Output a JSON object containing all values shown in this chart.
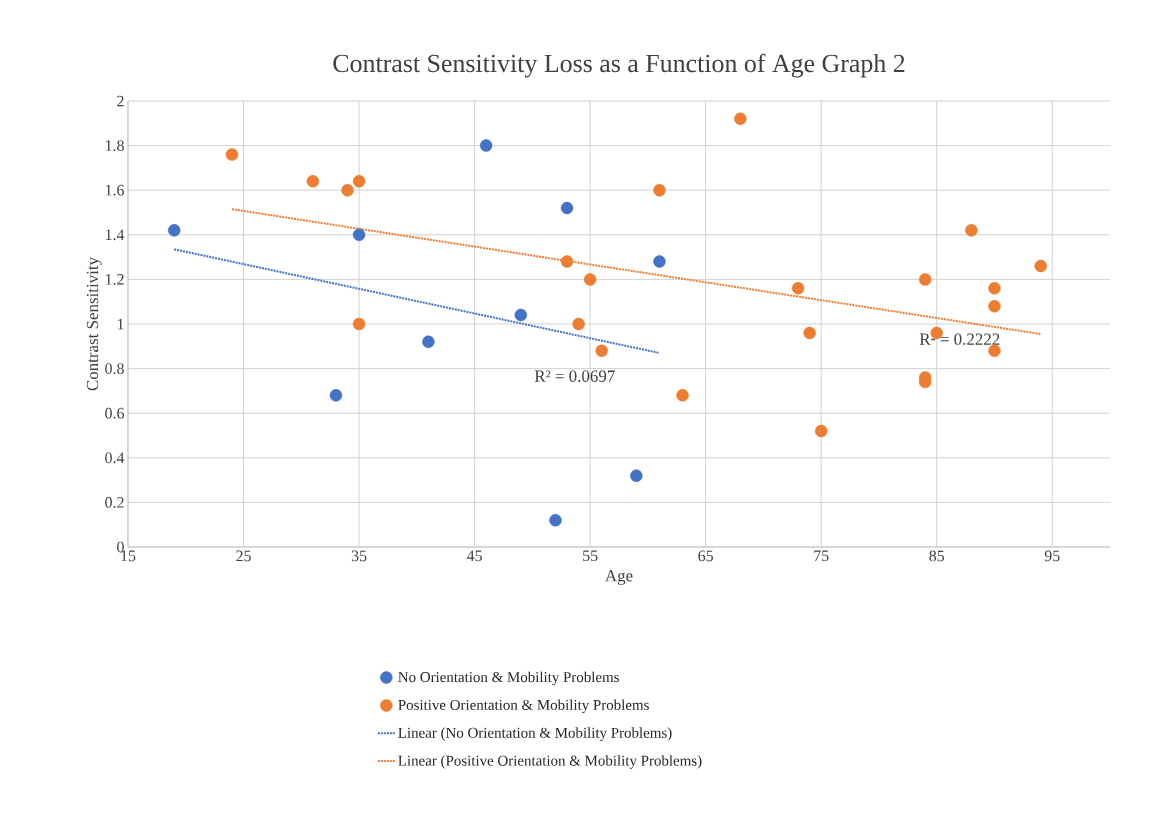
{
  "chart_data": {
    "type": "scatter",
    "title": "Contrast Sensitivity Loss as a Function of Age Graph 2",
    "xlabel": "Age",
    "ylabel": "Contrast Sensitivity",
    "xlim": [
      15,
      100
    ],
    "xticks": [
      15,
      25,
      35,
      45,
      55,
      65,
      75,
      85,
      95
    ],
    "ylim": [
      0,
      2
    ],
    "yticks": [
      0,
      0.2,
      0.4,
      0.6,
      0.8,
      1,
      1.2,
      1.4,
      1.6,
      1.8,
      2
    ],
    "grid": true,
    "legend": "bottom",
    "series": [
      {
        "name": "No Orientation & Mobility Problems",
        "color": "#4472c4",
        "marker": "circle",
        "x": [
          19,
          35,
          33,
          41,
          46,
          49,
          53,
          52,
          59,
          61
        ],
        "values": [
          1.42,
          1.4,
          0.68,
          0.92,
          1.8,
          1.04,
          1.52,
          0.12,
          0.32,
          1.28
        ]
      },
      {
        "name": "Positive Orientation & Mobility Problems",
        "color": "#ed7d31",
        "marker": "circle",
        "x": [
          24,
          31,
          34,
          35,
          35,
          53,
          55,
          54,
          56,
          61,
          63,
          68,
          73,
          74,
          75,
          84,
          84,
          84,
          85,
          88,
          90,
          90,
          90,
          94
        ],
        "values": [
          1.76,
          1.64,
          1.6,
          1.64,
          1.0,
          1.28,
          1.2,
          1.0,
          0.88,
          1.6,
          0.68,
          1.92,
          1.16,
          0.96,
          0.52,
          1.2,
          0.76,
          0.74,
          0.96,
          1.42,
          1.16,
          1.08,
          0.88,
          1.26
        ]
      },
      {
        "name": "Linear (No Orientation & Mobility Problems)",
        "type": "line",
        "line_style": "dotted",
        "marker": "none",
        "color": "#4472c4",
        "x": [
          19,
          61
        ],
        "values": [
          1.335,
          0.87
        ]
      },
      {
        "name": "Linear (Positive Orientation & Mobility Problems)",
        "type": "line",
        "line_style": "dotted",
        "marker": "none",
        "color": "#ed7d31",
        "x": [
          24,
          94
        ],
        "values": [
          1.515,
          0.955
        ]
      }
    ],
    "annotations": [
      "R² = 0.0697",
      "R² = 0.2222"
    ]
  }
}
